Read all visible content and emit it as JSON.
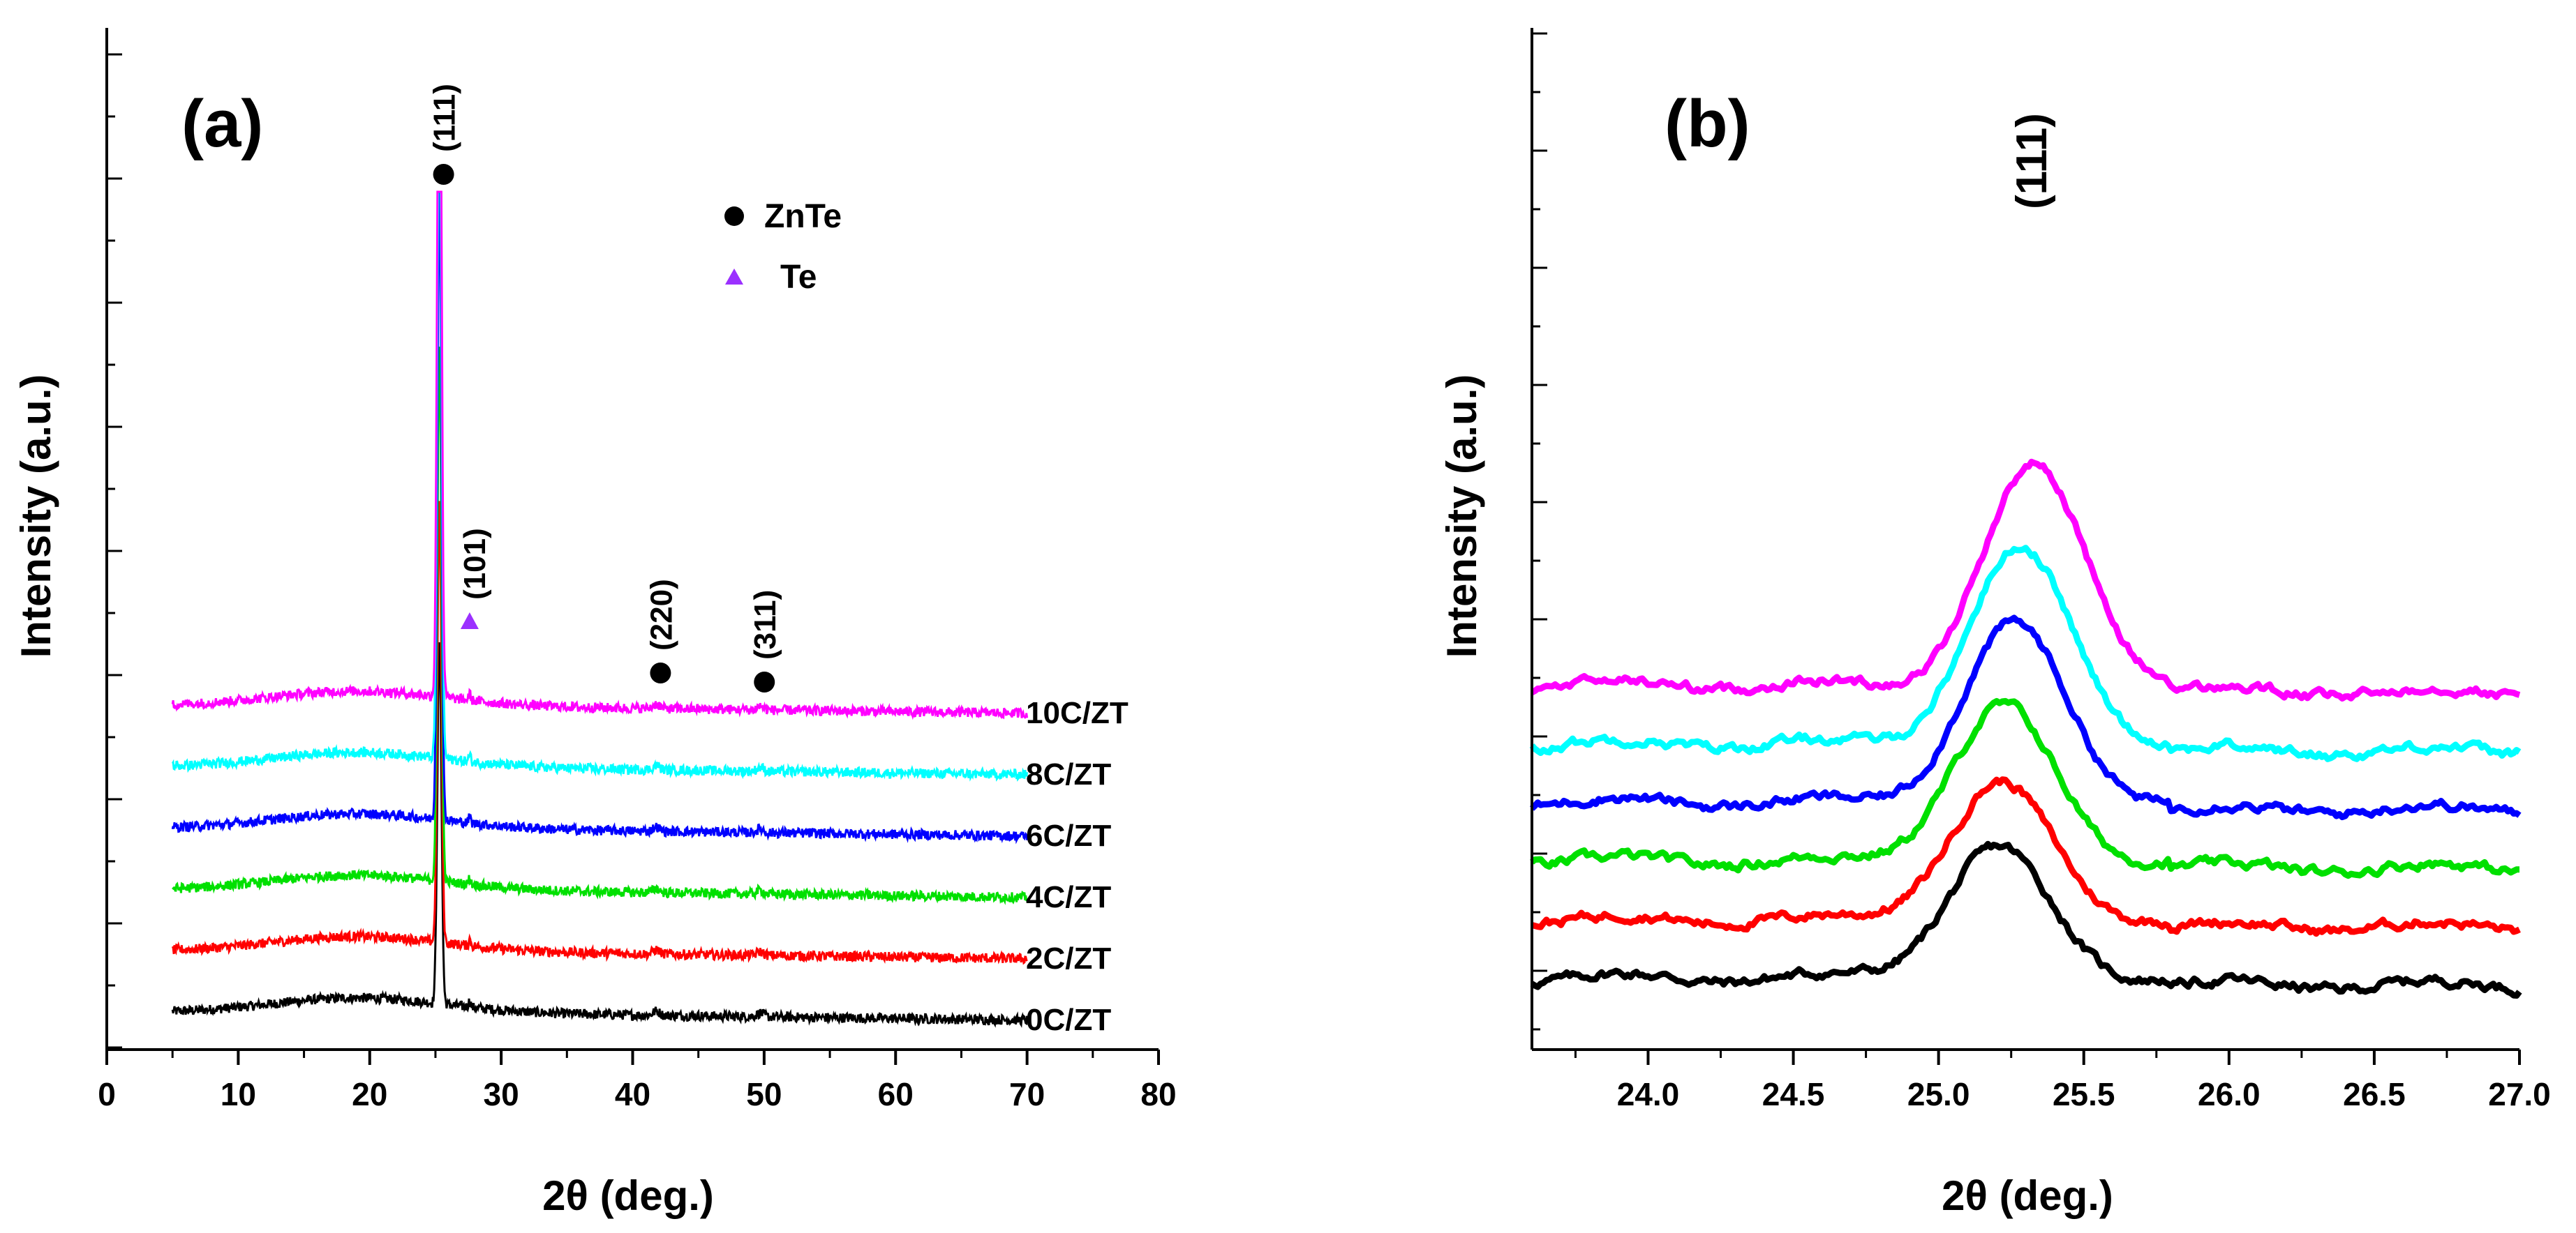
{
  "chart_data": [
    {
      "panel": "(a)",
      "type": "line",
      "xlabel": "2θ (deg.)",
      "ylabel": "Intensity (a.u.)",
      "xlim": [
        0,
        80
      ],
      "xticks": [
        "0",
        "10",
        "20",
        "30",
        "40",
        "50",
        "60",
        "70",
        "80"
      ],
      "grid": false,
      "legend": {
        "position": "top-center",
        "entries": [
          {
            "label": "ZnTe",
            "marker": "circle",
            "color": "#000000"
          },
          {
            "label": "Te",
            "marker": "triangle",
            "color": "#9b30ff"
          }
        ]
      },
      "annotations": [
        {
          "text": "(111)",
          "x": 25.3,
          "marker": "circle"
        },
        {
          "text": "(101)",
          "x": 27.6,
          "marker": "triangle"
        },
        {
          "text": "(220)",
          "x": 41.8,
          "marker": "circle"
        },
        {
          "text": "(311)",
          "x": 49.7,
          "marker": "circle"
        }
      ],
      "peaks": [
        {
          "x": 25.3,
          "width": 0.22,
          "height": 1.0
        },
        {
          "x": 27.6,
          "width": 0.12,
          "height": 0.05
        },
        {
          "x": 41.8,
          "width": 0.35,
          "height": 0.035
        },
        {
          "x": 49.7,
          "width": 0.35,
          "height": 0.03
        }
      ],
      "x_range": [
        5,
        70
      ],
      "series": [
        {
          "name": "0C/ZT",
          "color": "#000000",
          "baseline": 0.0,
          "peak_scale": 1.9
        },
        {
          "name": "2C/ZT",
          "color": "#ff0000",
          "baseline": 0.5,
          "peak_scale": 2.3
        },
        {
          "name": "4C/ZT",
          "color": "#00e000",
          "baseline": 1.0,
          "peak_scale": 2.8
        },
        {
          "name": "6C/ZT",
          "color": "#0000ff",
          "baseline": 1.5,
          "peak_scale": 3.3
        },
        {
          "name": "8C/ZT",
          "color": "#00ffff",
          "baseline": 2.0,
          "peak_scale": 3.8
        },
        {
          "name": "10C/ZT",
          "color": "#ff00ff",
          "baseline": 2.5,
          "peak_scale": 4.3
        }
      ]
    },
    {
      "panel": "(b)",
      "type": "line",
      "xlabel": "2θ (deg.)",
      "ylabel": "Intensity (a.u.)",
      "xlim": [
        23.6,
        27.0
      ],
      "xticks": [
        "24.0",
        "24.5",
        "25.0",
        "25.5",
        "26.0",
        "26.5",
        "27.0"
      ],
      "grid": false,
      "annotations": [
        {
          "text": "(111)",
          "x": 25.25
        }
      ],
      "x_range": [
        23.6,
        27.0
      ],
      "peak_width": 0.25,
      "series": [
        {
          "name": "0C/ZT",
          "color": "#000000",
          "baseline": 0.0,
          "peak_center": 25.2,
          "peak_height": 2.2
        },
        {
          "name": "2C/ZT",
          "color": "#ff0000",
          "baseline": 0.5,
          "peak_center": 25.21,
          "peak_height": 2.3
        },
        {
          "name": "4C/ZT",
          "color": "#00e000",
          "baseline": 1.0,
          "peak_center": 25.22,
          "peak_height": 2.6
        },
        {
          "name": "6C/ZT",
          "color": "#0000ff",
          "baseline": 1.5,
          "peak_center": 25.26,
          "peak_height": 3.0
        },
        {
          "name": "8C/ZT",
          "color": "#00ffff",
          "baseline": 2.0,
          "peak_center": 25.28,
          "peak_height": 3.3
        },
        {
          "name": "10C/ZT",
          "color": "#ff00ff",
          "baseline": 2.5,
          "peak_center": 25.33,
          "peak_height": 3.7
        }
      ]
    }
  ]
}
